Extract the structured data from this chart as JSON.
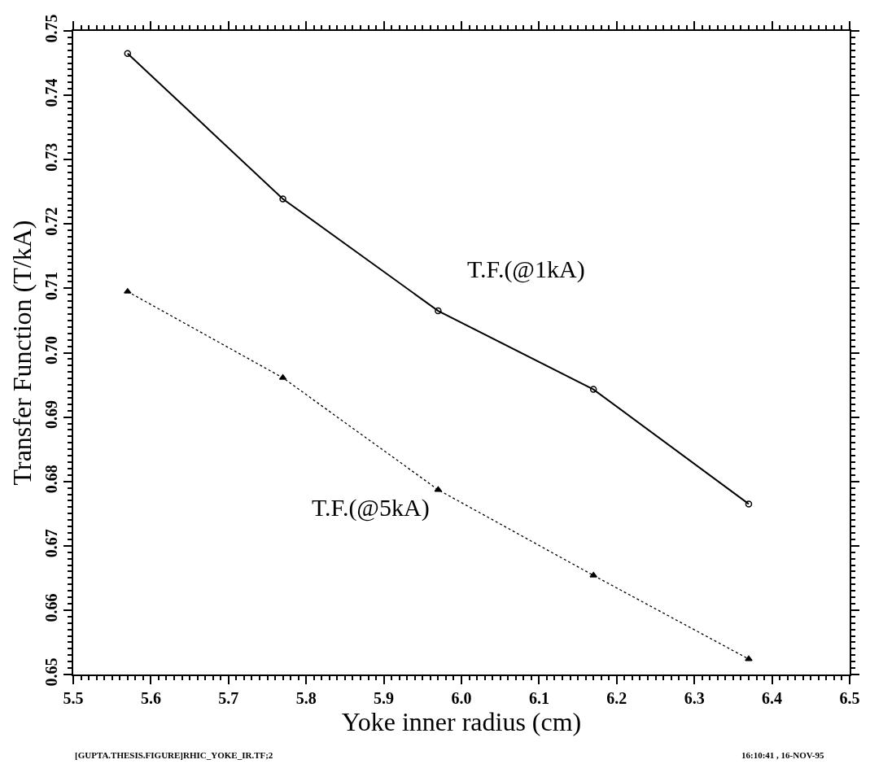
{
  "chart_data": {
    "type": "line",
    "xlabel": "Yoke inner radius (cm)",
    "ylabel": "Transfer Function (T/kA)",
    "x": [
      5.57,
      5.77,
      5.97,
      6.17,
      6.37
    ],
    "series": [
      {
        "color": "#000000",
        "values": [
          0.7465,
          0.7239,
          0.7065,
          0.6943,
          0.6765
        ],
        "marker": "circle",
        "line_style": "solid"
      },
      {
        "color": "#000000",
        "values": [
          0.7095,
          0.6961,
          0.6787,
          0.6654,
          0.6524
        ],
        "marker": "triangle",
        "line_style": "dotted"
      }
    ],
    "xlim": [
      5.5,
      6.5
    ],
    "xticks": [
      5.5,
      5.6,
      5.7,
      5.8,
      5.9,
      {
        "value": 6.0,
        "label": "6.0"
      },
      6.1,
      6.2,
      6.3,
      6.4,
      6.5
    ],
    "ylim": [
      0.65,
      0.75
    ],
    "yticks": [
      0.65,
      0.66,
      0.67,
      0.68,
      0.69,
      {
        "value": 0.7,
        "label": "0.70"
      },
      0.71,
      0.72,
      0.73,
      0.74,
      0.75
    ],
    "annotations": [
      "T.F.(@1kA)",
      "T.F.(@5kA)",
      "[GUPTA.THESIS.FIGURE]RHIC_YOKE_IR.TF;2",
      "16:10:41 , 16-NOV-95"
    ]
  }
}
